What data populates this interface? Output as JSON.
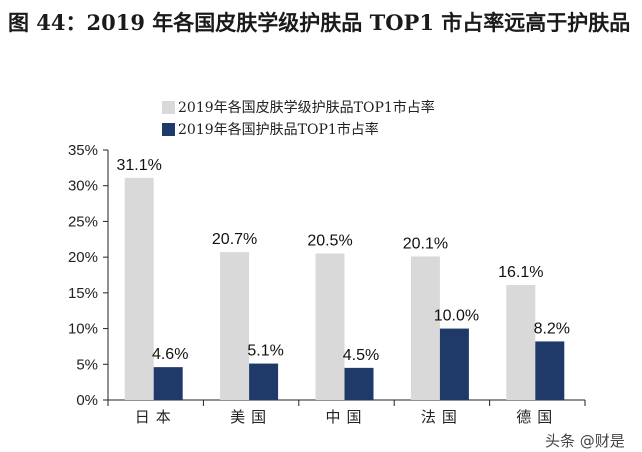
{
  "title": "图 44：2019 年各国皮肤学级护肤品 TOP1 市占率远高于护肤品",
  "watermark": "头条 @财是",
  "chart_data": {
    "type": "bar",
    "categories": [
      "日本",
      "美国",
      "中国",
      "法国",
      "德国"
    ],
    "series": [
      {
        "name": "2019年各国皮肤学级护肤品TOP1市占率",
        "values": [
          31.1,
          20.7,
          20.5,
          20.1,
          16.1
        ],
        "color": "#d9d9d9"
      },
      {
        "name": "2019年各国护肤品TOP1市占率",
        "values": [
          4.6,
          5.1,
          4.5,
          10.0,
          8.2
        ],
        "color": "#1f3a68"
      }
    ],
    "ylim": [
      0,
      35
    ],
    "yticks": [
      "0%",
      "5%",
      "10%",
      "15%",
      "20%",
      "25%",
      "30%",
      "35%"
    ],
    "legend": "top",
    "grid": false
  }
}
